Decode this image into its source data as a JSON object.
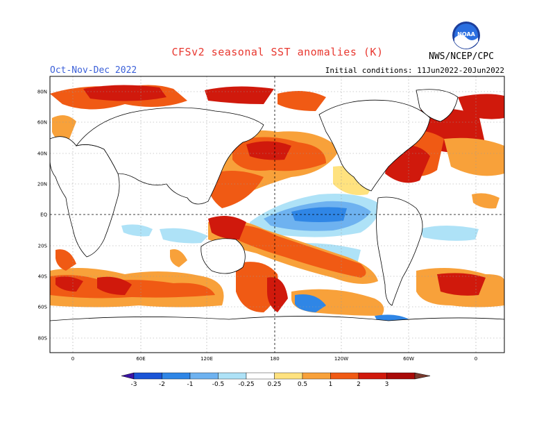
{
  "title": "CFSv2 seasonal SST anomalies (K)",
  "season": "Oct-Nov-Dec 2022",
  "initial_conditions": "Initial conditions: 11Jun2022-20Jun2022",
  "agency": "NWS/NCEP/CPC",
  "logo_text": "NOAA",
  "lat_labels": [
    "80N",
    "60N",
    "40N",
    "20N",
    "EQ",
    "20S",
    "40S",
    "60S",
    "80S"
  ],
  "lon_labels": [
    "0",
    "60E",
    "120E",
    "180",
    "120W",
    "60W",
    "0"
  ],
  "colorbar": {
    "ticks": [
      "-3",
      "-2",
      "-1",
      "-0.5",
      "-0.25",
      "0.25",
      "0.5",
      "1",
      "2",
      "3"
    ],
    "colors": [
      "#3b14a6",
      "#1a54d6",
      "#2f86e6",
      "#6eb2f0",
      "#aee2f7",
      "#ffffff",
      "#ffe27f",
      "#f8a13a",
      "#f05a14",
      "#d0190c",
      "#a80a08",
      "#7a3a2e"
    ]
  },
  "colors": {
    "title": "#e8372f",
    "season": "#3a5fd8",
    "land": "#ffffff",
    "coast": "#000000"
  }
}
